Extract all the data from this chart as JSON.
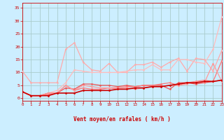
{
  "background_color": "#cceeff",
  "grid_color": "#aacccc",
  "xlabel": "Vent moyen/en rafales ( km/h )",
  "xlabel_color": "#cc0000",
  "tick_color": "#cc0000",
  "ylim": [
    -1,
    37
  ],
  "xlim": [
    0,
    23
  ],
  "yticks": [
    0,
    5,
    10,
    15,
    20,
    25,
    30,
    35
  ],
  "xticks": [
    0,
    1,
    2,
    3,
    4,
    5,
    6,
    7,
    8,
    9,
    10,
    11,
    12,
    13,
    14,
    15,
    16,
    17,
    18,
    19,
    20,
    21,
    22,
    23
  ],
  "series": [
    {
      "x": [
        0,
        1,
        2,
        3,
        4,
        5,
        6,
        7,
        8,
        9,
        10,
        11,
        12,
        13,
        14,
        15,
        16,
        17,
        18,
        19,
        20,
        21,
        22,
        23
      ],
      "y": [
        10.5,
        6,
        6,
        6,
        6,
        19,
        21.5,
        14,
        11,
        10.5,
        13.5,
        10,
        10,
        13,
        13,
        14,
        12,
        14,
        15.5,
        10.5,
        15.5,
        15,
        10.5,
        18.5
      ],
      "color": "#ffaaaa",
      "lw": 0.9,
      "marker": "o",
      "ms": 1.5
    },
    {
      "x": [
        0,
        1,
        2,
        3,
        4,
        5,
        6,
        7,
        8,
        9,
        10,
        11,
        12,
        13,
        14,
        15,
        16,
        17,
        18,
        19,
        20,
        21,
        22,
        23
      ],
      "y": [
        2.5,
        1,
        1,
        2,
        3,
        6,
        11,
        10.5,
        10,
        10,
        10,
        10,
        10.5,
        11,
        11,
        13,
        11,
        11,
        15,
        15,
        14,
        13.5,
        19,
        31.5
      ],
      "color": "#ffbbbb",
      "lw": 0.9,
      "marker": "o",
      "ms": 1.5
    },
    {
      "x": [
        0,
        1,
        2,
        3,
        4,
        5,
        6,
        7,
        8,
        9,
        10,
        11,
        12,
        13,
        14,
        15,
        16,
        17,
        18,
        19,
        20,
        21,
        22,
        23
      ],
      "y": [
        2.5,
        1,
        1,
        2,
        2,
        4,
        3.5,
        5.5,
        5.5,
        5,
        5,
        4.5,
        5,
        4.5,
        5,
        5,
        5,
        3.5,
        6,
        6,
        5.5,
        6,
        6.5,
        7
      ],
      "color": "#ee5555",
      "lw": 0.9,
      "marker": "o",
      "ms": 1.5
    },
    {
      "x": [
        0,
        1,
        2,
        3,
        4,
        5,
        6,
        7,
        8,
        9,
        10,
        11,
        12,
        13,
        14,
        15,
        16,
        17,
        18,
        19,
        20,
        21,
        22,
        23
      ],
      "y": [
        2.5,
        1,
        1,
        1.5,
        2,
        5,
        3,
        4,
        3.5,
        3.5,
        4,
        4,
        4.5,
        4.5,
        5,
        5,
        5.5,
        6,
        5,
        6,
        6.5,
        7,
        6.5,
        14.5
      ],
      "color": "#ff7777",
      "lw": 0.9,
      "marker": "o",
      "ms": 1.5
    },
    {
      "x": [
        0,
        1,
        2,
        3,
        4,
        5,
        6,
        7,
        8,
        9,
        10,
        11,
        12,
        13,
        14,
        15,
        16,
        17,
        18,
        19,
        20,
        21,
        22,
        23
      ],
      "y": [
        2.5,
        1,
        1,
        2,
        2,
        5,
        3,
        5,
        4.5,
        4,
        4,
        3.5,
        4,
        3.5,
        4,
        4.5,
        4.5,
        5,
        5,
        5.5,
        6.5,
        6,
        13.5,
        6.5
      ],
      "color": "#ff9999",
      "lw": 0.9,
      "marker": "o",
      "ms": 1.5
    },
    {
      "x": [
        0,
        1,
        2,
        3,
        4,
        5,
        6,
        7,
        8,
        9,
        10,
        11,
        12,
        13,
        14,
        15,
        16,
        17,
        18,
        19,
        20,
        21,
        22,
        23
      ],
      "y": [
        2.5,
        1,
        1,
        1,
        2,
        2,
        2,
        3,
        3,
        3,
        3,
        3.5,
        3.5,
        4,
        4,
        4.5,
        4.5,
        5,
        5.5,
        6,
        6,
        6.5,
        6.5,
        7
      ],
      "color": "#cc0000",
      "lw": 1.2,
      "marker": "D",
      "ms": 1.5
    }
  ],
  "wind_arrows": [
    "↖",
    "↖",
    "↖",
    "↙",
    "↓",
    "↙",
    "↙",
    "↙",
    "↓",
    "↓",
    "↙",
    "↓",
    "↓",
    "↙",
    "↓",
    "↙",
    "↙",
    "↘",
    "↘",
    "→",
    "→",
    "↗",
    "→",
    "→"
  ]
}
